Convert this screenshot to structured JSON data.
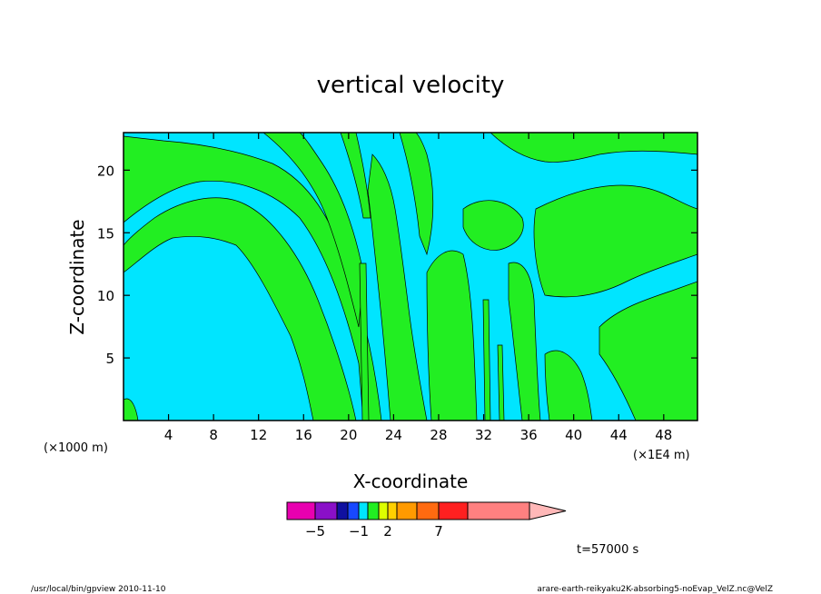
{
  "chart_data": {
    "type": "heatmap",
    "title": "vertical velocity",
    "xlabel": "X-coordinate",
    "ylabel": "Z-coordinate",
    "x_unit_left": "(×1000 m)",
    "x_unit_right": "(×1E4 m)",
    "xlim": [
      0,
      51
    ],
    "ylim": [
      0,
      23
    ],
    "x_ticks": [
      4,
      8,
      12,
      16,
      20,
      24,
      28,
      32,
      36,
      40,
      44,
      48
    ],
    "y_ticks": [
      5,
      10,
      15,
      20
    ],
    "background_color": "#00e5ff",
    "contour_color": "#22ee22",
    "colorbar": {
      "segments": [
        "#e800b0",
        "#8a10c8",
        "#1010a0",
        "#1848ff",
        "#00e5ff",
        "#22ee22",
        "#ddff00",
        "#ffd000",
        "#ff9a00",
        "#ff6a10",
        "#ff2020",
        "#ff8080",
        "#ffb8b8"
      ],
      "labels": [
        {
          "text": "−5",
          "after_segment": 1
        },
        {
          "text": "−1",
          "after_segment": 4
        },
        {
          "text": "2",
          "after_segment": 7
        },
        {
          "text": "7",
          "after_segment": 10
        }
      ]
    }
  },
  "time_label": "t=57000 s",
  "footer_left": "/usr/local/bin/gpview  2010-11-10",
  "footer_right": "arare-earth-reikyaku2K-absorbing5-noEvap_VelZ.nc@VelZ"
}
